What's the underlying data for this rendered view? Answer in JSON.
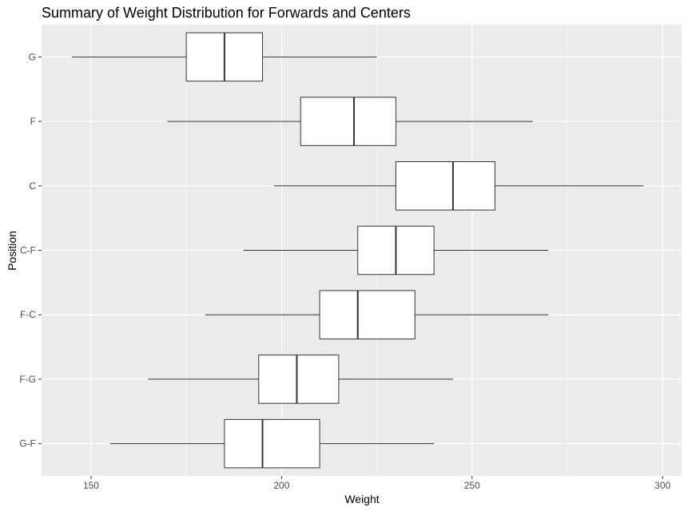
{
  "chart_data": {
    "type": "boxplot",
    "orientation": "horizontal",
    "title": "Summary of Weight Distribution for Forwards and Centers",
    "xlabel": "Weight",
    "ylabel": "Position",
    "xlim": [
      137,
      305
    ],
    "xticks": [
      150,
      200,
      250,
      300
    ],
    "grid": true,
    "legend": "none",
    "colors": {
      "panel": "#ebebeb",
      "grid": "#ffffff",
      "box_fill": "#ffffff",
      "box_stroke": "#333333"
    },
    "categories": [
      "G",
      "F",
      "C",
      "C-F",
      "F-C",
      "F-G",
      "G-F"
    ],
    "boxes": [
      {
        "category": "G",
        "min": 145,
        "q1": 175,
        "median": 185,
        "q3": 195,
        "max": 225
      },
      {
        "category": "F",
        "min": 170,
        "q1": 205,
        "median": 219,
        "q3": 230,
        "max": 266
      },
      {
        "category": "C",
        "min": 198,
        "q1": 230,
        "median": 245,
        "q3": 256,
        "max": 295
      },
      {
        "category": "C-F",
        "min": 190,
        "q1": 220,
        "median": 230,
        "q3": 240,
        "max": 270
      },
      {
        "category": "F-C",
        "min": 180,
        "q1": 210,
        "median": 220,
        "q3": 235,
        "max": 270
      },
      {
        "category": "F-G",
        "min": 165,
        "q1": 194,
        "median": 204,
        "q3": 215,
        "max": 245
      },
      {
        "category": "G-F",
        "min": 155,
        "q1": 185,
        "median": 195,
        "q3": 210,
        "max": 240
      }
    ]
  }
}
